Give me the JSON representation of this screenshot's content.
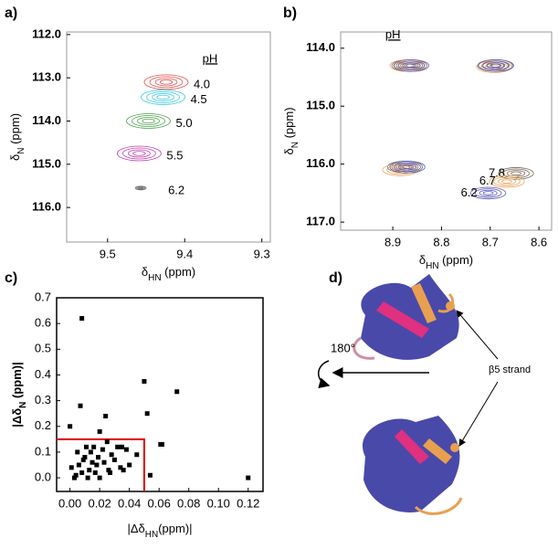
{
  "chart_data": [
    {
      "type": "contour",
      "panel": "a)",
      "legend_title": "pH",
      "legend": "right",
      "x_label": {
        "symbol": "δ",
        "subscript": "HN",
        "unit": " (ppm)"
      },
      "y_label": {
        "symbol": "δ",
        "subscript": "N",
        "unit": " (ppm)"
      },
      "xlim": [
        9.553,
        9.289
      ],
      "ylim": [
        111.94,
        116.8
      ],
      "xticks": [
        9.5,
        9.4,
        9.3
      ],
      "yticks": [
        {
          "value": 112,
          "label": "112.0"
        },
        {
          "value": 113,
          "label": "113.0"
        },
        {
          "value": 114,
          "label": "114.0"
        },
        {
          "value": 115,
          "label": "115.0"
        },
        {
          "value": 116,
          "label": "116.0"
        }
      ],
      "series": [
        {
          "name": "4.0",
          "color": "#e0504a",
          "x": [
            9.424
          ],
          "y": [
            113.1
          ]
        },
        {
          "name": "4.5",
          "color": "#40c8e0",
          "x": [
            9.428
          ],
          "y": [
            113.45
          ]
        },
        {
          "name": "5.0",
          "color": "#50a050",
          "x": [
            9.447
          ],
          "y": [
            114.0
          ]
        },
        {
          "name": "5.5",
          "color": "#c040b0",
          "x": [
            9.459
          ],
          "y": [
            114.75
          ]
        },
        {
          "name": "6.2",
          "color": "#707070",
          "x": [
            9.457
          ],
          "y": [
            115.55
          ]
        }
      ]
    },
    {
      "type": "contour",
      "panel": "b)",
      "legend_title": "pH",
      "legend": "left",
      "x_label": {
        "symbol": "δ",
        "subscript": "HN",
        "unit": " (ppm)"
      },
      "y_label": {
        "symbol": "δ",
        "subscript": "N",
        "unit": " (ppm)"
      },
      "xlim": [
        9.007,
        8.574
      ],
      "ylim": [
        113.72,
        117.14
      ],
      "xticks": [
        8.9,
        8.8,
        8.7,
        8.6
      ],
      "yticks": [
        {
          "value": 114,
          "label": "114.0"
        },
        {
          "value": 115,
          "label": "115.0"
        },
        {
          "value": 116,
          "label": "116.0"
        },
        {
          "value": 117,
          "label": "117.0"
        }
      ],
      "series": [
        {
          "name": "7.8",
          "color": "#7a6a58",
          "x": [
            8.866,
            8.69,
            8.875,
            8.647
          ],
          "y": [
            114.3,
            114.3,
            116.05,
            116.16
          ]
        },
        {
          "name": "6.7",
          "color": "#e8a860",
          "x": [
            8.87,
            8.692,
            8.885,
            8.666
          ],
          "y": [
            114.3,
            114.32,
            116.1,
            116.3
          ]
        },
        {
          "name": "6.2",
          "color": "#5858b8",
          "x": [
            8.862,
            8.688,
            8.87,
            8.704
          ],
          "y": [
            114.3,
            114.3,
            116.05,
            116.5
          ]
        }
      ]
    },
    {
      "type": "scatter",
      "panel": "c)",
      "color": "#000000",
      "x_label": {
        "symbol": "|Δδ",
        "subscript": "HN",
        "unit": "(ppm)|"
      },
      "y_label": {
        "symbol": "|Δδ",
        "subscript": "N",
        "unit": " (ppm)|"
      },
      "xlim": [
        -0.009,
        0.13
      ],
      "ylim": [
        -0.053,
        0.7
      ],
      "xticks": [
        {
          "value": 0,
          "label": "0.00"
        },
        {
          "value": 0.02,
          "label": "0.02"
        },
        {
          "value": 0.04,
          "label": "0.04"
        },
        {
          "value": 0.06,
          "label": "0.06"
        },
        {
          "value": 0.08,
          "label": "0.08"
        },
        {
          "value": 0.1,
          "label": "0.10"
        },
        {
          "value": 0.12,
          "label": "0.12"
        }
      ],
      "yticks": [
        {
          "value": 0,
          "label": "0.0"
        },
        0.1,
        0.2,
        0.3,
        0.4,
        0.5,
        0.6,
        0.7
      ],
      "threshold": {
        "x": 0.05,
        "y": 0.15,
        "color": "#e00000"
      },
      "x": [
        0.008,
        0.05,
        0.072,
        0.007,
        0.0,
        0.052,
        0.024,
        0.061,
        0.062,
        0.02,
        0.12,
        0.054,
        0.045,
        0.001,
        0.003,
        0.005,
        0.006,
        0.008,
        0.01,
        0.011,
        0.012,
        0.013,
        0.014,
        0.015,
        0.016,
        0.017,
        0.018,
        0.019,
        0.02,
        0.022,
        0.023,
        0.025,
        0.027,
        0.028,
        0.03,
        0.032,
        0.034,
        0.035,
        0.036,
        0.038,
        0.04,
        0.004,
        0.009,
        0.026
      ],
      "values": [
        0.62,
        0.375,
        0.335,
        0.28,
        0.2,
        0.25,
        0.24,
        0.13,
        0.13,
        0.18,
        0.0,
        0.01,
        0.09,
        0.04,
        0.0,
        0.1,
        0.05,
        0.02,
        0.08,
        0.12,
        0.0,
        0.03,
        0.1,
        0.06,
        0.12,
        0.02,
        0.05,
        0.08,
        0.0,
        0.11,
        0.06,
        0.14,
        0.02,
        0.09,
        0.07,
        0.12,
        0.04,
        0.12,
        0.03,
        0.11,
        0.05,
        0.01,
        0.07,
        0.03
      ]
    }
  ],
  "diagram": {
    "panel": "d)",
    "rotation": "180°",
    "annotation": "β5 strand"
  }
}
